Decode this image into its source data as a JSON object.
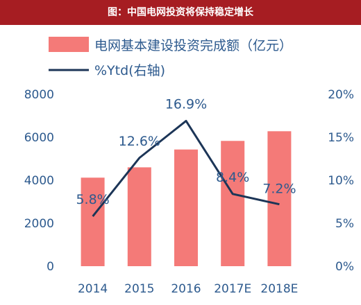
{
  "banner": {
    "title": "图：中国电网投资将保持稳定增长"
  },
  "colors": {
    "bar": "#f47a78",
    "line": "#1c3557",
    "text": "#2d5a8e",
    "banner": "#a61d22"
  },
  "chart_data": {
    "type": "bar",
    "categories": [
      "2014",
      "2015",
      "2016",
      "2017E",
      "2018E"
    ],
    "series": [
      {
        "name": "电网基本建设投资完成额（亿元）",
        "type": "bar",
        "axis": "left",
        "values": [
          4120,
          4600,
          5430,
          5830,
          6280
        ]
      },
      {
        "name": "%Ytd(右轴)",
        "type": "line",
        "axis": "right",
        "values": [
          5.8,
          12.6,
          16.9,
          8.4,
          7.2
        ],
        "labels": [
          "5.8%",
          "12.6%",
          "16.9%",
          "8.4%",
          "7.2%"
        ]
      }
    ],
    "y_left": {
      "ylim": [
        0,
        8000
      ],
      "ticks": [
        "0",
        "2000",
        "4000",
        "6000",
        "8000"
      ]
    },
    "y_right": {
      "ylim": [
        0,
        20
      ],
      "ticks": [
        "0%",
        "5%",
        "10%",
        "15%",
        "20%"
      ]
    },
    "legend_position": "top",
    "grid": false
  }
}
